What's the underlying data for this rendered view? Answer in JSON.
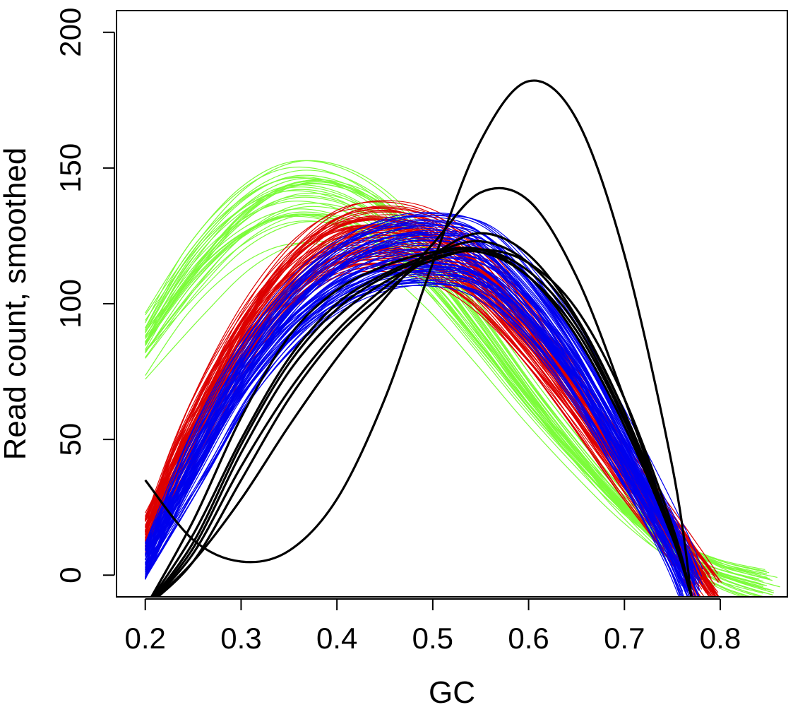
{
  "chart_data": {
    "type": "line",
    "title": "",
    "xlabel": "GC",
    "ylabel": "Read count, smoothed",
    "xlim": [
      0.17,
      0.87
    ],
    "ylim": [
      -8,
      208
    ],
    "x_ticks": [
      0.2,
      0.3,
      0.4,
      0.5,
      0.6,
      0.7,
      0.8
    ],
    "x_tick_labels": [
      "0.2",
      "0.3",
      "0.4",
      "0.5",
      "0.6",
      "0.7",
      "0.8"
    ],
    "y_ticks": [
      0,
      50,
      100,
      150,
      200
    ],
    "y_tick_labels": [
      "0",
      "50",
      "100",
      "150",
      "200"
    ],
    "grid": false,
    "legend": "none",
    "groups": [
      {
        "color": "#7CFC3A",
        "line_width": 1.2,
        "count": 36,
        "x_range": [
          0.2,
          0.86
        ],
        "representative": {
          "x": [
            0.2,
            0.25,
            0.3,
            0.35,
            0.4,
            0.45,
            0.5,
            0.55,
            0.6,
            0.65,
            0.7,
            0.75,
            0.8,
            0.85
          ],
          "y": [
            85,
            110,
            128,
            137,
            136,
            127,
            110,
            88,
            65,
            44,
            25,
            10,
            1,
            -4
          ]
        },
        "spread_at_x": {
          "x": [
            0.2,
            0.36,
            0.5,
            0.8
          ],
          "y_min": [
            73,
            128,
            106,
            -3
          ],
          "y_max": [
            93,
            147,
            114,
            5
          ]
        }
      },
      {
        "color": "#DD0000",
        "line_width": 1.2,
        "count": 70,
        "x_range": [
          0.2,
          0.79
        ],
        "representative": {
          "x": [
            0.2,
            0.25,
            0.3,
            0.35,
            0.4,
            0.45,
            0.5,
            0.55,
            0.6,
            0.65,
            0.7,
            0.75,
            0.79
          ],
          "y": [
            15,
            52,
            85,
            108,
            121,
            124,
            120,
            108,
            88,
            64,
            38,
            14,
            -6
          ]
        },
        "spread_at_x": {
          "x": [
            0.2,
            0.42,
            0.5,
            0.7
          ],
          "y_min": [
            0,
            112,
            116,
            30
          ],
          "y_max": [
            32,
            132,
            124,
            50
          ]
        }
      },
      {
        "color": "#0000EE",
        "line_width": 1.2,
        "count": 70,
        "x_range": [
          0.2,
          0.77
        ],
        "representative": {
          "x": [
            0.2,
            0.25,
            0.3,
            0.35,
            0.4,
            0.45,
            0.5,
            0.55,
            0.6,
            0.65,
            0.7,
            0.75,
            0.77
          ],
          "y": [
            5,
            40,
            72,
            95,
            110,
            118,
            120,
            116,
            100,
            76,
            45,
            12,
            -4
          ]
        },
        "spread_at_x": {
          "x": [
            0.2,
            0.5,
            0.55,
            0.7
          ],
          "y_min": [
            -6,
            116,
            115,
            40
          ],
          "y_max": [
            22,
            124,
            138,
            58
          ]
        }
      },
      {
        "color": "#000000",
        "line_width": 3.2,
        "count": 8,
        "curves": [
          {
            "x": [
              0.2,
              0.25,
              0.3,
              0.35,
              0.4,
              0.45,
              0.5,
              0.55,
              0.6,
              0.65,
              0.7,
              0.75,
              0.77
            ],
            "y": [
              35,
              13,
              5,
              9,
              28,
              65,
              115,
              160,
              182,
              168,
              118,
              40,
              -8
            ]
          },
          {
            "x": [
              0.2,
              0.25,
              0.3,
              0.35,
              0.4,
              0.45,
              0.5,
              0.55,
              0.6,
              0.65,
              0.7,
              0.75,
              0.77
            ],
            "y": [
              -12,
              5,
              28,
              55,
              80,
              102,
              122,
              141,
              138,
              110,
              65,
              15,
              -8
            ]
          },
          {
            "x": [
              0.2,
              0.25,
              0.3,
              0.35,
              0.4,
              0.45,
              0.5,
              0.55,
              0.6,
              0.65,
              0.7,
              0.75,
              0.77
            ],
            "y": [
              -12,
              5,
              35,
              65,
              88,
              104,
              118,
              126,
              118,
              95,
              60,
              15,
              -8
            ]
          },
          {
            "x": [
              0.2,
              0.25,
              0.3,
              0.35,
              0.4,
              0.45,
              0.5,
              0.55,
              0.6,
              0.65,
              0.7,
              0.75,
              0.77
            ],
            "y": [
              -12,
              10,
              45,
              75,
              95,
              108,
              116,
              120,
              115,
              98,
              65,
              18,
              -8
            ]
          },
          {
            "x": [
              0.2,
              0.25,
              0.3,
              0.35,
              0.4,
              0.45,
              0.5,
              0.55,
              0.6,
              0.65,
              0.7,
              0.75,
              0.77
            ],
            "y": [
              -12,
              15,
              50,
              80,
              100,
              111,
              118,
              120,
              112,
              92,
              58,
              15,
              -8
            ]
          },
          {
            "x": [
              0.2,
              0.25,
              0.3,
              0.35,
              0.4,
              0.45,
              0.5,
              0.55,
              0.6,
              0.65,
              0.7,
              0.75,
              0.77
            ],
            "y": [
              -12,
              20,
              58,
              88,
              105,
              114,
              119,
              120,
              110,
              88,
              55,
              14,
              -8
            ]
          },
          {
            "x": [
              0.2,
              0.25,
              0.3,
              0.35,
              0.4,
              0.45,
              0.5,
              0.55,
              0.6,
              0.65,
              0.7,
              0.75,
              0.77
            ],
            "y": [
              -12,
              8,
              40,
              68,
              90,
              106,
              118,
              123,
              115,
              94,
              60,
              16,
              -8
            ]
          },
          {
            "x": [
              0.2,
              0.25,
              0.3,
              0.35,
              0.4,
              0.45,
              0.5,
              0.55,
              0.6,
              0.65,
              0.7,
              0.75,
              0.77
            ],
            "y": [
              -12,
              12,
              48,
              78,
              98,
              110,
              117,
              119,
              110,
              90,
              57,
              15,
              -8
            ]
          }
        ]
      }
    ]
  }
}
